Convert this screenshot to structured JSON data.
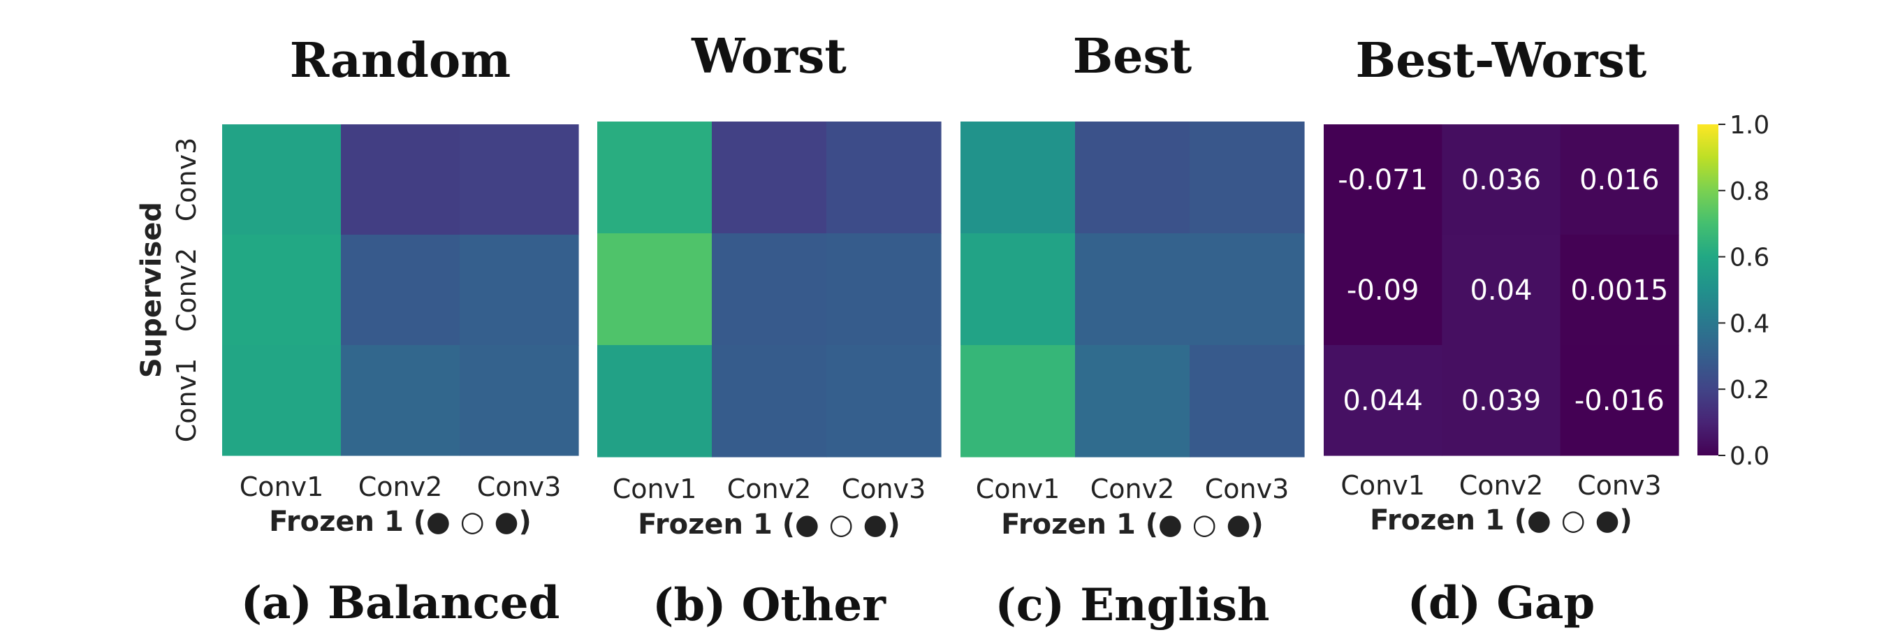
{
  "chart_data": [
    {
      "type": "heatmap",
      "title": "Random",
      "caption": "(a) Balanced",
      "xlabel": "Frozen 1 (● ○ ●)",
      "ylabel": "Supervised",
      "x_categories": [
        "Conv1",
        "Conv2",
        "Conv3"
      ],
      "y_categories": [
        "Conv3",
        "Conv2",
        "Conv1"
      ],
      "values": [
        [
          0.58,
          0.18,
          0.19
        ],
        [
          0.6,
          0.28,
          0.3
        ],
        [
          0.59,
          0.33,
          0.31
        ]
      ],
      "annotated": false
    },
    {
      "type": "heatmap",
      "title": "Worst",
      "caption": "(b) Other",
      "xlabel": "Frozen 1 (● ○ ●)",
      "ylabel": "",
      "x_categories": [
        "Conv1",
        "Conv2",
        "Conv3"
      ],
      "y_categories": [
        "Conv3",
        "Conv2",
        "Conv1"
      ],
      "values": [
        [
          0.62,
          0.19,
          0.23
        ],
        [
          0.72,
          0.28,
          0.29
        ],
        [
          0.57,
          0.29,
          0.3
        ]
      ],
      "annotated": false
    },
    {
      "type": "heatmap",
      "title": "Best",
      "caption": "(c) English",
      "xlabel": "Frozen 1 (● ○ ●)",
      "ylabel": "",
      "x_categories": [
        "Conv1",
        "Conv2",
        "Conv3"
      ],
      "y_categories": [
        "Conv3",
        "Conv2",
        "Conv1"
      ],
      "values": [
        [
          0.51,
          0.25,
          0.27
        ],
        [
          0.58,
          0.31,
          0.31
        ],
        [
          0.66,
          0.35,
          0.28
        ]
      ],
      "annotated": false
    },
    {
      "type": "heatmap",
      "title": "Best-Worst",
      "caption": "(d) Gap",
      "xlabel": "Frozen 1 (● ○ ●)",
      "ylabel": "",
      "x_categories": [
        "Conv1",
        "Conv2",
        "Conv3"
      ],
      "y_categories": [
        "Conv3",
        "Conv2",
        "Conv1"
      ],
      "values": [
        [
          -0.071,
          0.036,
          0.016
        ],
        [
          -0.09,
          0.04,
          0.0015
        ],
        [
          0.044,
          0.039,
          -0.016
        ]
      ],
      "cell_labels": [
        [
          "-0.071",
          "0.036",
          "0.016"
        ],
        [
          "-0.09",
          "0.04",
          "0.0015"
        ],
        [
          "0.044",
          "0.039",
          "-0.016"
        ]
      ],
      "annotated": true
    }
  ],
  "colorbar": {
    "colormap": "viridis",
    "range": [
      0.0,
      1.0
    ],
    "ticks": [
      0.0,
      0.2,
      0.4,
      0.6,
      0.8,
      1.0
    ],
    "tick_labels": [
      "0.0",
      "0.2",
      "0.4",
      "0.6",
      "0.8",
      "1.0"
    ]
  }
}
